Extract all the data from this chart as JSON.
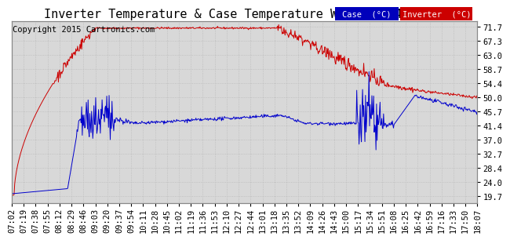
{
  "title": "Inverter Temperature & Case Temperature Wed Oct 14 18:15",
  "copyright": "Copyright 2015 Cartronics.com",
  "ylabel_right_ticks": [
    19.7,
    24.0,
    28.4,
    32.7,
    37.0,
    41.4,
    45.7,
    50.0,
    54.4,
    58.7,
    63.0,
    67.3,
    71.7
  ],
  "ymin": 17.5,
  "ymax": 73.5,
  "legend_case_label": "Case  (°C)",
  "legend_inverter_label": "Inverter  (°C)",
  "legend_case_bg": "#0000bb",
  "legend_inverter_bg": "#cc0000",
  "bg_color": "#ffffff",
  "plot_bg_color": "#d8d8d8",
  "grid_color": "#bbbbbb",
  "x_tick_labels": [
    "07:02",
    "07:19",
    "07:38",
    "07:55",
    "08:12",
    "08:29",
    "08:46",
    "09:03",
    "09:20",
    "09:37",
    "09:54",
    "10:11",
    "10:28",
    "10:45",
    "11:02",
    "11:19",
    "11:36",
    "11:53",
    "12:10",
    "12:27",
    "12:44",
    "13:01",
    "13:18",
    "13:35",
    "13:52",
    "14:09",
    "14:26",
    "14:43",
    "15:00",
    "15:17",
    "15:34",
    "15:51",
    "16:08",
    "16:25",
    "16:42",
    "16:59",
    "17:16",
    "17:33",
    "17:50",
    "18:07"
  ],
  "red_line_color": "#cc0000",
  "blue_line_color": "#0000cc",
  "title_fontsize": 11,
  "tick_fontsize": 7.5,
  "copyright_fontsize": 7.5
}
